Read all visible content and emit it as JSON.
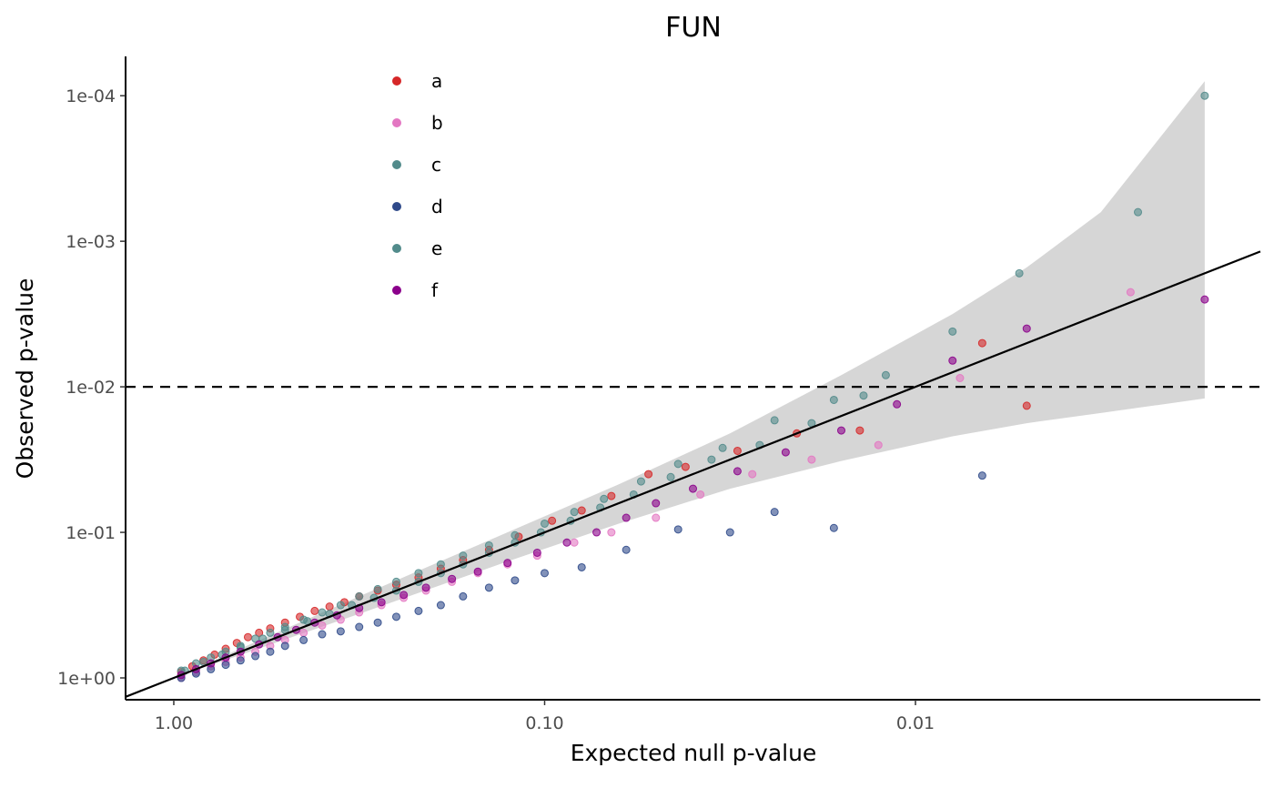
{
  "chart_data": {
    "type": "scatter",
    "title": "FUN",
    "xlabel": "Expected null p-value",
    "ylabel": "Observed p-value",
    "x_scale": "-log10",
    "y_scale": "-log10",
    "xlim_neglog10": [
      -0.13,
      2.93
    ],
    "ylim_neglog10": [
      -0.15,
      4.27
    ],
    "x_ticks": [
      {
        "value": 0,
        "label": "1.00"
      },
      {
        "value": 1,
        "label": "0.10"
      },
      {
        "value": 2,
        "label": "0.01"
      }
    ],
    "y_ticks": [
      {
        "value": 0,
        "label": "1e+00"
      },
      {
        "value": 1,
        "label": "1e-01"
      },
      {
        "value": 2,
        "label": "1e-02"
      },
      {
        "value": 3,
        "label": "1e-03"
      },
      {
        "value": 4,
        "label": "1e-04"
      }
    ],
    "significance_line": {
      "p": 0.01,
      "style": "dashed"
    },
    "identity_line": true,
    "grid": false,
    "legend_position": "top-left inside",
    "confidence_band": [
      {
        "x": 0.0,
        "lo": 0.0,
        "hi": 0.0
      },
      {
        "x": 0.5,
        "lo": 0.44,
        "hi": 0.56
      },
      {
        "x": 0.9,
        "lo": 0.8,
        "hi": 1.0
      },
      {
        "x": 1.2,
        "lo": 1.06,
        "hi": 1.33
      },
      {
        "x": 1.5,
        "lo": 1.3,
        "hi": 1.68
      },
      {
        "x": 1.8,
        "lo": 1.49,
        "hi": 2.08
      },
      {
        "x": 2.1,
        "lo": 1.66,
        "hi": 2.5
      },
      {
        "x": 2.3,
        "lo": 1.75,
        "hi": 2.82
      },
      {
        "x": 2.5,
        "lo": 1.82,
        "hi": 3.2
      },
      {
        "x": 2.78,
        "lo": 1.92,
        "hi": 4.1
      }
    ],
    "series": [
      {
        "name": "a",
        "color": "#D62728",
        "x": [
          0.02,
          0.05,
          0.08,
          0.11,
          0.14,
          0.17,
          0.2,
          0.23,
          0.26,
          0.3,
          0.34,
          0.38,
          0.42,
          0.46,
          0.5,
          0.55,
          0.6,
          0.66,
          0.72,
          0.78,
          0.85,
          0.93,
          1.02,
          1.1,
          1.18,
          1.28,
          1.38,
          1.52,
          1.68,
          1.85,
          2.18,
          2.3
        ],
        "y": [
          0.04,
          0.08,
          0.12,
          0.16,
          0.2,
          0.24,
          0.28,
          0.31,
          0.34,
          0.38,
          0.42,
          0.46,
          0.49,
          0.52,
          0.56,
          0.6,
          0.64,
          0.69,
          0.75,
          0.81,
          0.88,
          0.97,
          1.08,
          1.15,
          1.25,
          1.4,
          1.45,
          1.56,
          1.68,
          1.7,
          2.3,
          1.87
        ]
      },
      {
        "name": "b",
        "color": "#E377C2",
        "x": [
          0.02,
          0.06,
          0.1,
          0.14,
          0.18,
          0.22,
          0.26,
          0.3,
          0.35,
          0.4,
          0.45,
          0.5,
          0.56,
          0.62,
          0.68,
          0.75,
          0.82,
          0.9,
          0.98,
          1.08,
          1.18,
          1.3,
          1.42,
          1.56,
          1.72,
          1.9,
          2.12,
          2.58
        ],
        "y": [
          0.0,
          0.04,
          0.08,
          0.11,
          0.14,
          0.18,
          0.22,
          0.26,
          0.31,
          0.36,
          0.4,
          0.45,
          0.5,
          0.55,
          0.6,
          0.66,
          0.72,
          0.78,
          0.84,
          0.93,
          1.0,
          1.1,
          1.26,
          1.4,
          1.5,
          1.6,
          2.06,
          2.65
        ]
      },
      {
        "name": "c",
        "color": "#528B8B",
        "x": [
          0.02,
          0.06,
          0.1,
          0.14,
          0.18,
          0.22,
          0.26,
          0.3,
          0.35,
          0.4,
          0.45,
          0.5,
          0.55,
          0.6,
          0.66,
          0.72,
          0.78,
          0.85,
          0.92,
          1.0,
          1.08,
          1.16,
          1.26,
          1.36,
          1.48,
          1.62,
          1.78,
          1.92,
          2.28
        ],
        "y": [
          0.05,
          0.1,
          0.14,
          0.18,
          0.22,
          0.27,
          0.31,
          0.35,
          0.4,
          0.45,
          0.5,
          0.56,
          0.61,
          0.66,
          0.72,
          0.78,
          0.84,
          0.91,
          0.98,
          1.06,
          1.14,
          1.23,
          1.35,
          1.47,
          1.58,
          1.77,
          1.91,
          2.08,
          2.78
        ]
      },
      {
        "name": "d",
        "color": "#2F4A8A",
        "x": [
          0.02,
          0.06,
          0.1,
          0.14,
          0.18,
          0.22,
          0.26,
          0.3,
          0.35,
          0.4,
          0.45,
          0.5,
          0.55,
          0.6,
          0.66,
          0.72,
          0.78,
          0.85,
          0.92,
          1.0,
          1.1,
          1.22,
          1.36,
          1.5,
          1.62,
          1.78,
          2.18
        ],
        "y": [
          0.0,
          0.03,
          0.06,
          0.09,
          0.12,
          0.15,
          0.18,
          0.22,
          0.26,
          0.3,
          0.32,
          0.35,
          0.38,
          0.42,
          0.46,
          0.5,
          0.56,
          0.62,
          0.67,
          0.72,
          0.76,
          0.88,
          1.02,
          1.0,
          1.14,
          1.03,
          1.39
        ]
      },
      {
        "name": "e",
        "color": "#528B8B",
        "x": [
          0.03,
          0.08,
          0.13,
          0.18,
          0.24,
          0.3,
          0.36,
          0.42,
          0.48,
          0.54,
          0.6,
          0.66,
          0.72,
          0.78,
          0.85,
          0.92,
          0.99,
          1.07,
          1.15,
          1.24,
          1.34,
          1.45,
          1.58,
          1.72,
          1.86,
          2.1,
          2.6,
          2.78
        ],
        "y": [
          0.05,
          0.11,
          0.16,
          0.21,
          0.27,
          0.33,
          0.39,
          0.44,
          0.5,
          0.55,
          0.6,
          0.66,
          0.72,
          0.78,
          0.86,
          0.93,
          1.0,
          1.08,
          1.17,
          1.26,
          1.38,
          1.5,
          1.6,
          1.75,
          1.94,
          2.38,
          3.2,
          4.0
        ]
      },
      {
        "name": "f",
        "color": "#8B008B",
        "x": [
          0.02,
          0.06,
          0.1,
          0.14,
          0.18,
          0.23,
          0.28,
          0.33,
          0.38,
          0.44,
          0.5,
          0.56,
          0.62,
          0.68,
          0.75,
          0.82,
          0.9,
          0.98,
          1.06,
          1.14,
          1.22,
          1.3,
          1.4,
          1.52,
          1.65,
          1.8,
          1.95,
          2.1,
          2.3,
          2.78
        ],
        "y": [
          0.02,
          0.06,
          0.1,
          0.14,
          0.18,
          0.23,
          0.28,
          0.33,
          0.38,
          0.43,
          0.48,
          0.52,
          0.57,
          0.62,
          0.68,
          0.73,
          0.79,
          0.86,
          0.93,
          1.0,
          1.1,
          1.2,
          1.3,
          1.42,
          1.55,
          1.7,
          1.88,
          2.18,
          2.4,
          2.6
        ]
      }
    ]
  }
}
